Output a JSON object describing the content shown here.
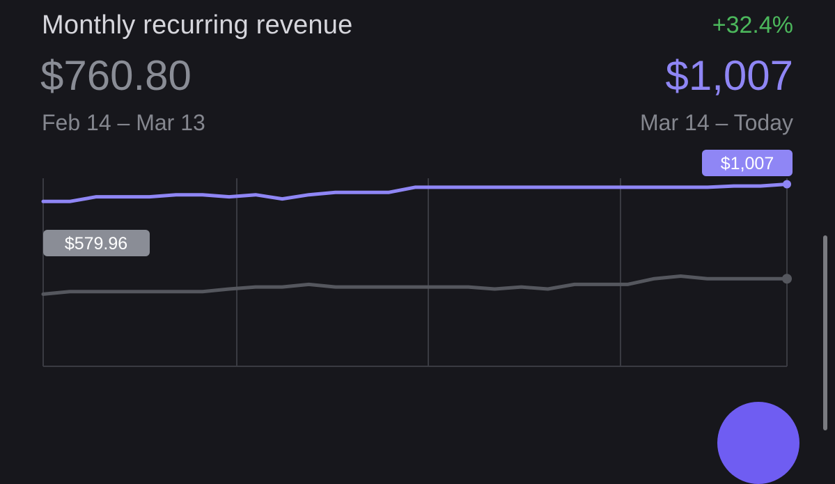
{
  "header": {
    "title": "Monthly recurring revenue",
    "change": "+32.4%"
  },
  "previous_period": {
    "value": "$760.80",
    "range": "Feb 14 – Mar 13"
  },
  "current_period": {
    "value": "$1,007",
    "range": "Mar 14 – Today"
  },
  "colors": {
    "current_series": "#8f86f5",
    "previous_series": "#55575e",
    "change_positive": "#4cb85c",
    "background": "#17171c"
  },
  "chart_data": {
    "type": "line",
    "title": "",
    "xlabel": "",
    "ylabel": "",
    "ylim": [
      300,
      1030
    ],
    "grid": "vertical",
    "x": [
      0,
      1,
      2,
      3,
      4,
      5,
      6,
      7,
      8,
      9,
      10,
      11,
      12,
      13,
      14,
      15,
      16,
      17,
      18,
      19,
      20,
      21,
      22,
      23,
      24,
      25,
      26,
      27,
      28
    ],
    "series": [
      {
        "name": "",
        "color": "#8f86f5",
        "end_label": "$1,007",
        "values": [
          940,
          940,
          958,
          958,
          958,
          966,
          966,
          958,
          966,
          950,
          966,
          975,
          975,
          975,
          995,
          995,
          995,
          995,
          995,
          995,
          995,
          995,
          995,
          995,
          995,
          995,
          1000,
          1000,
          1007
        ]
      },
      {
        "name": "",
        "color": "#55575e",
        "start_label": "$579.96",
        "values": [
          580,
          590,
          590,
          590,
          590,
          590,
          590,
          600,
          608,
          608,
          618,
          608,
          608,
          608,
          608,
          608,
          608,
          600,
          608,
          600,
          618,
          618,
          618,
          640,
          650,
          640,
          640,
          640,
          640
        ]
      }
    ]
  },
  "icons": {
    "fab": "add-circle-icon"
  }
}
